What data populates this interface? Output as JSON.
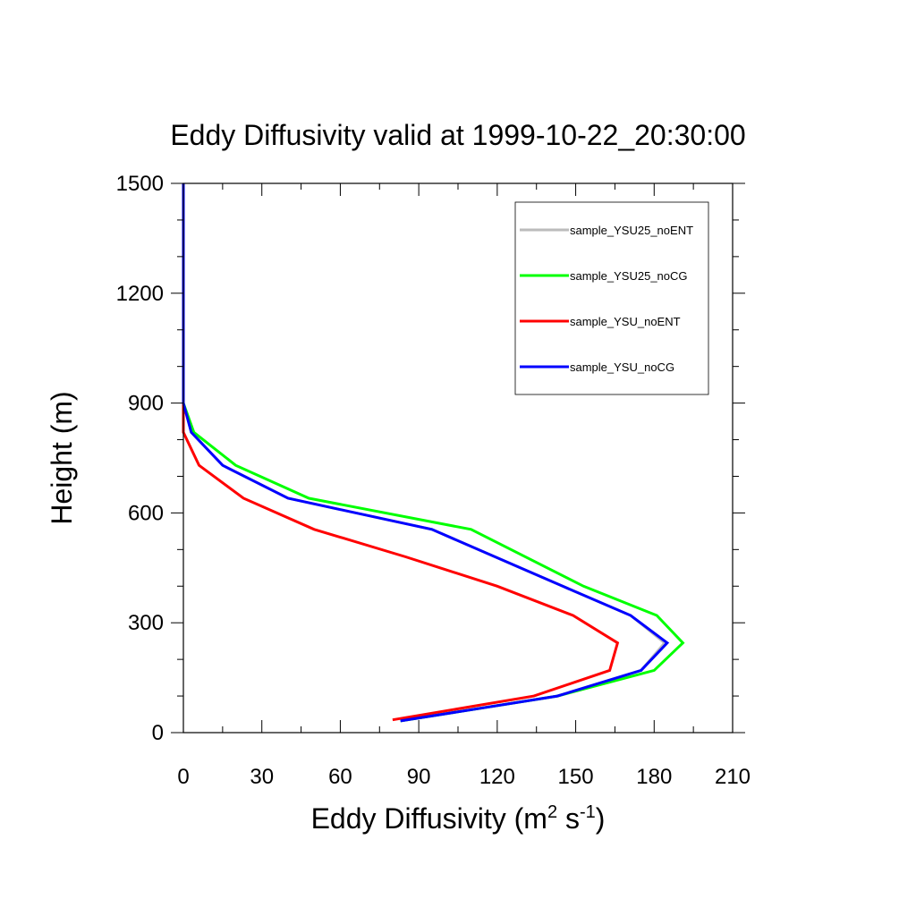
{
  "chart_data": {
    "type": "line",
    "title": "Eddy Diffusivity valid at 1999-10-22_20:30:00",
    "xlabel": {
      "base": "Eddy Diffusivity (m",
      "sup1": "2",
      "mid": " s",
      "sup2": "-1",
      "end": ")"
    },
    "ylabel": "Height (m)",
    "xlim": [
      0,
      210
    ],
    "ylim": [
      0,
      1500
    ],
    "xticks": [
      0,
      30,
      60,
      90,
      120,
      150,
      180,
      210
    ],
    "yticks": [
      0,
      300,
      600,
      900,
      1200,
      1500
    ],
    "xtick_labels": [
      "0",
      "30",
      "60",
      "90",
      "120",
      "150",
      "180",
      "210"
    ],
    "ytick_labels": [
      "0",
      "300",
      "600",
      "900",
      "1200",
      "1500"
    ],
    "legend_position": "top-right",
    "series": [
      {
        "name": "sample_YSU25_noENT",
        "color": "#bbbbbb",
        "x": [
          83,
          143,
          175,
          184,
          171,
          145,
          95,
          40,
          15,
          3,
          0,
          0,
          0
        ],
        "y": [
          32,
          100,
          170,
          245,
          320,
          400,
          555,
          640,
          730,
          820,
          900,
          1200,
          1500
        ]
      },
      {
        "name": "sample_YSU25_noCG",
        "color": "#00ff00",
        "x": [
          83,
          143,
          180,
          191,
          181,
          153,
          110,
          48,
          20,
          4,
          0,
          0,
          0
        ],
        "y": [
          32,
          100,
          170,
          245,
          320,
          400,
          555,
          640,
          730,
          820,
          900,
          1200,
          1500
        ]
      },
      {
        "name": "sample_YSU_noENT",
        "color": "#ff0000",
        "x": [
          80,
          134,
          163,
          166,
          149,
          120,
          85,
          50,
          23,
          6,
          0,
          0,
          0
        ],
        "y": [
          35,
          100,
          170,
          245,
          320,
          400,
          480,
          555,
          640,
          730,
          820,
          1200,
          1500
        ]
      },
      {
        "name": "sample_YSU_noCG",
        "color": "#0000ff",
        "x": [
          83,
          143,
          175,
          185,
          171,
          145,
          95,
          40,
          15,
          3,
          0,
          0,
          0
        ],
        "y": [
          32,
          100,
          170,
          245,
          320,
          400,
          555,
          640,
          730,
          820,
          900,
          1200,
          1500
        ]
      }
    ]
  }
}
